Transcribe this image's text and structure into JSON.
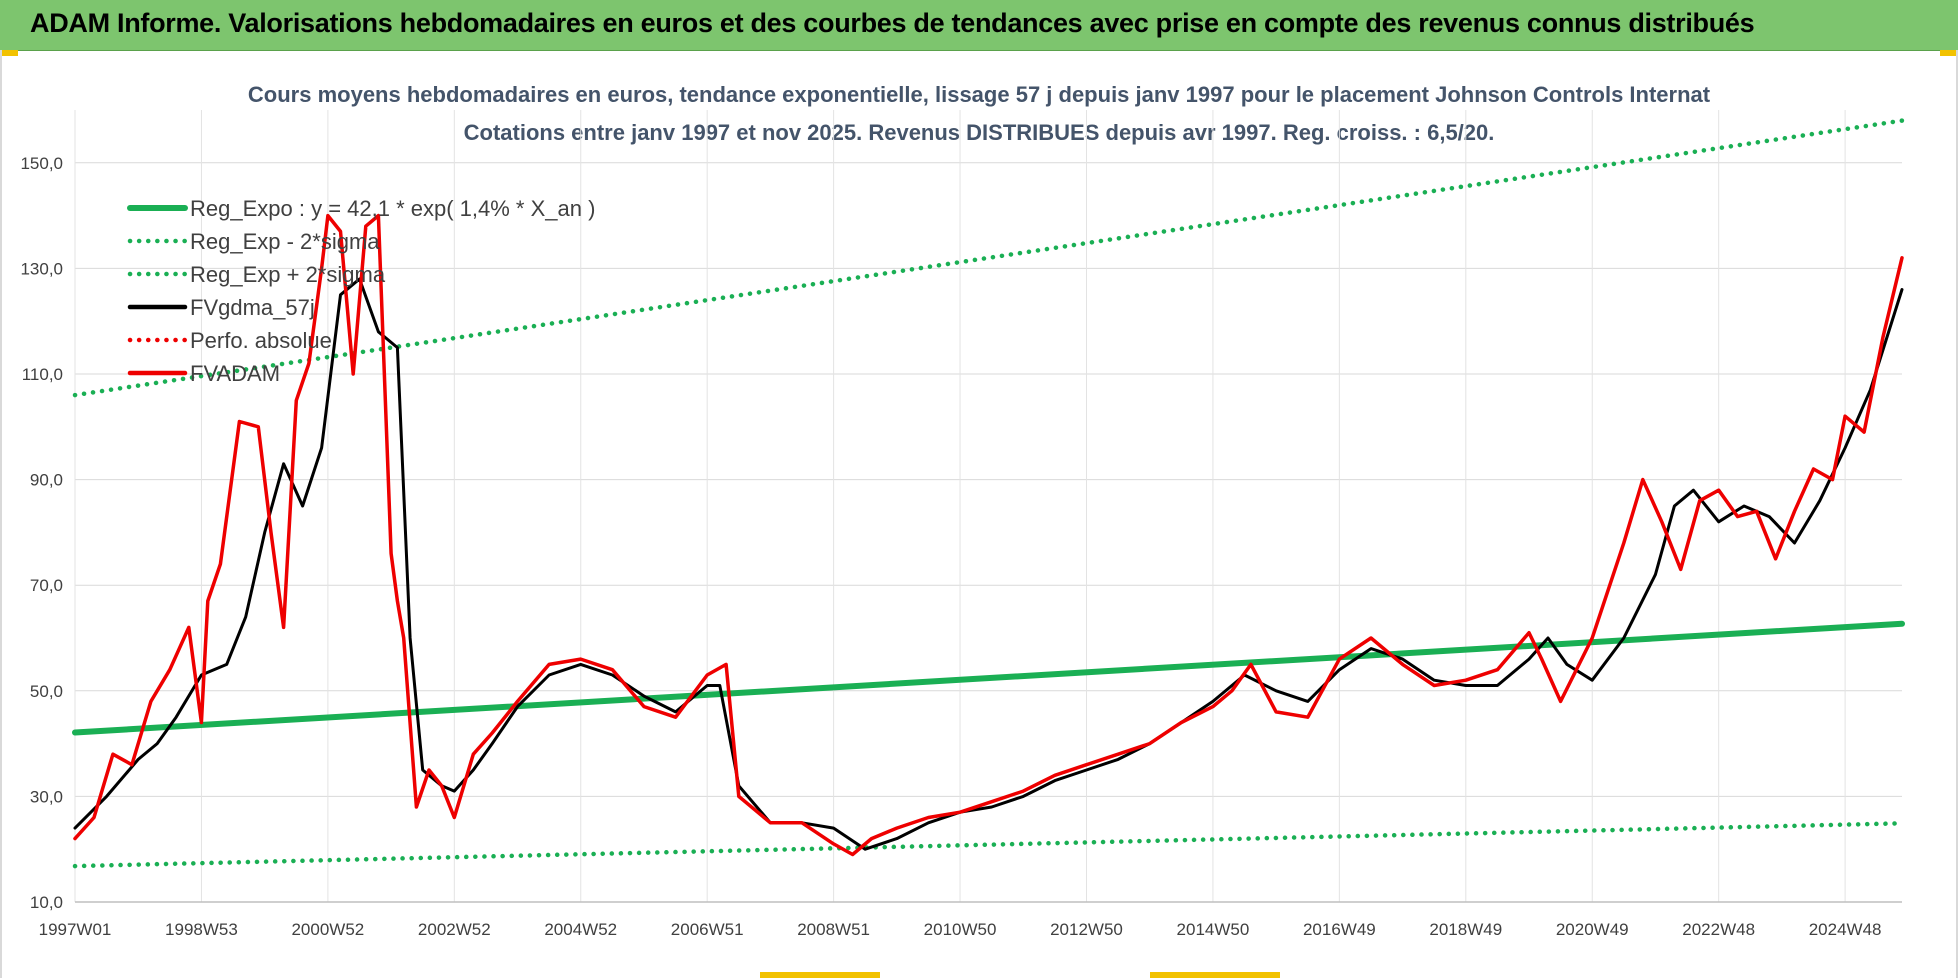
{
  "banner": {
    "title": "ADAM Informe. Valorisations hebdomadaires en euros et des courbes de tendances avec prise en compte des revenus connus distribués"
  },
  "colors": {
    "banner": "#7dc56e",
    "reg": "#1aaf54",
    "fv": "#ee0000",
    "gdma": "#000000",
    "accent": "#f2c200"
  },
  "chart_data": {
    "type": "line",
    "title": "Cours moyens hebdomadaires en euros, tendance exponentielle, lissage 57 j depuis janv 1997 pour le placement Johnson Controls Internat",
    "subtitle": "Cotations entre janv 1997 et nov 2025. Revenus DISTRIBUES depuis avr 1997. Reg. croiss. : 6,5/20.",
    "xlabel": "",
    "ylabel": "",
    "ylim": [
      10,
      160
    ],
    "xlim": [
      1997.0,
      2025.9
    ],
    "grid": true,
    "legend_position": "top-left",
    "y_ticks": [
      "10,0",
      "30,0",
      "50,0",
      "70,0",
      "90,0",
      "110,0",
      "130,0",
      "150,0"
    ],
    "x_ticks": [
      {
        "label": "1997W01",
        "x": 1997.0
      },
      {
        "label": "1998W53",
        "x": 1999.0
      },
      {
        "label": "2000W52",
        "x": 2001.0
      },
      {
        "label": "2002W52",
        "x": 2003.0
      },
      {
        "label": "2004W52",
        "x": 2005.0
      },
      {
        "label": "2006W51",
        "x": 2007.0
      },
      {
        "label": "2008W51",
        "x": 2009.0
      },
      {
        "label": "2010W50",
        "x": 2011.0
      },
      {
        "label": "2012W50",
        "x": 2013.0
      },
      {
        "label": "2014W50",
        "x": 2015.0
      },
      {
        "label": "2016W49",
        "x": 2017.0
      },
      {
        "label": "2018W49",
        "x": 2019.0
      },
      {
        "label": "2020W49",
        "x": 2021.0
      },
      {
        "label": "2022W48",
        "x": 2023.0
      },
      {
        "label": "2024W48",
        "x": 2025.0
      }
    ],
    "series": [
      {
        "name": "Reg_Expo : y = 42,1 * exp( 1,4% *  X_an )",
        "style": "solid",
        "color": "#1aaf54",
        "x": [
          1997.0,
          2025.9
        ],
        "y": [
          42.1,
          62.7
        ]
      },
      {
        "name": "Reg_Exp - 2*sigma",
        "style": "dotted",
        "color": "#1aaf54",
        "x": [
          1997.0,
          2025.9
        ],
        "y": [
          16.8,
          24.9
        ]
      },
      {
        "name": "Reg_Exp + 2*sigma",
        "style": "dotted",
        "color": "#1aaf54",
        "x": [
          1997.0,
          2025.9
        ],
        "y": [
          106.0,
          158.0
        ]
      },
      {
        "name": "FVgdma_57j",
        "style": "solid",
        "color": "#000000",
        "x": [
          1997.0,
          1997.5,
          1998.0,
          1998.3,
          1998.6,
          1999.0,
          1999.4,
          1999.7,
          2000.0,
          2000.3,
          2000.6,
          2000.9,
          2001.2,
          2001.5,
          2001.8,
          2002.1,
          2002.3,
          2002.5,
          2002.8,
          2003.0,
          2003.3,
          2003.6,
          2004.0,
          2004.5,
          2005.0,
          2005.5,
          2006.0,
          2006.5,
          2007.0,
          2007.2,
          2007.5,
          2008.0,
          2008.5,
          2009.0,
          2009.5,
          2010.0,
          2010.5,
          2011.0,
          2011.5,
          2012.0,
          2012.5,
          2013.0,
          2013.5,
          2014.0,
          2014.5,
          2015.0,
          2015.5,
          2016.0,
          2016.5,
          2017.0,
          2017.5,
          2018.0,
          2018.5,
          2019.0,
          2019.5,
          2020.0,
          2020.3,
          2020.6,
          2021.0,
          2021.5,
          2022.0,
          2022.3,
          2022.6,
          2023.0,
          2023.4,
          2023.8,
          2024.2,
          2024.6,
          2025.0,
          2025.4,
          2025.9
        ],
        "y": [
          24,
          30,
          37,
          40,
          45,
          53,
          55,
          64,
          80,
          93,
          85,
          96,
          125,
          128,
          118,
          115,
          60,
          35,
          32,
          31,
          35,
          40,
          47,
          53,
          55,
          53,
          49,
          46,
          51,
          51,
          32,
          25,
          25,
          24,
          20,
          22,
          25,
          27,
          28,
          30,
          33,
          35,
          37,
          40,
          44,
          48,
          53,
          50,
          48,
          54,
          58,
          56,
          52,
          51,
          51,
          56,
          60,
          55,
          52,
          60,
          72,
          85,
          88,
          82,
          85,
          83,
          78,
          86,
          96,
          107,
          126
        ]
      },
      {
        "name": "Perfo. absolue",
        "style": "dotted",
        "color": "#ee0000",
        "x": [],
        "y": []
      },
      {
        "name": "FVADAM",
        "style": "solid",
        "color": "#ee0000",
        "x": [
          1997.0,
          1997.3,
          1997.6,
          1997.9,
          1998.2,
          1998.5,
          1998.8,
          1999.0,
          1999.1,
          1999.3,
          1999.6,
          1999.9,
          2000.1,
          2000.3,
          2000.5,
          2000.7,
          2000.9,
          2001.0,
          2001.2,
          2001.4,
          2001.6,
          2001.8,
          2002.0,
          2002.1,
          2002.2,
          2002.4,
          2002.6,
          2002.8,
          2003.0,
          2003.3,
          2003.6,
          2004.0,
          2004.5,
          2005.0,
          2005.5,
          2006.0,
          2006.5,
          2007.0,
          2007.3,
          2007.5,
          2008.0,
          2008.5,
          2009.0,
          2009.3,
          2009.6,
          2010.0,
          2010.5,
          2011.0,
          2011.5,
          2012.0,
          2012.5,
          2013.0,
          2013.5,
          2014.0,
          2014.5,
          2015.0,
          2015.3,
          2015.6,
          2016.0,
          2016.5,
          2017.0,
          2017.5,
          2018.0,
          2018.5,
          2019.0,
          2019.5,
          2020.0,
          2020.2,
          2020.5,
          2021.0,
          2021.5,
          2021.8,
          2022.1,
          2022.4,
          2022.7,
          2023.0,
          2023.3,
          2023.6,
          2023.9,
          2024.2,
          2024.5,
          2024.8,
          2025.0,
          2025.3,
          2025.6,
          2025.9
        ],
        "y": [
          22,
          26,
          38,
          36,
          48,
          54,
          62,
          44,
          67,
          74,
          101,
          100,
          80,
          62,
          105,
          112,
          130,
          140,
          137,
          110,
          138,
          140,
          76,
          67,
          60,
          28,
          35,
          32,
          26,
          38,
          42,
          48,
          55,
          56,
          54,
          47,
          45,
          53,
          55,
          30,
          25,
          25,
          21,
          19,
          22,
          24,
          26,
          27,
          29,
          31,
          34,
          36,
          38,
          40,
          44,
          47,
          50,
          55,
          46,
          45,
          56,
          60,
          55,
          51,
          52,
          54,
          61,
          56,
          48,
          60,
          78,
          90,
          82,
          73,
          86,
          88,
          83,
          84,
          75,
          84,
          92,
          90,
          102,
          99,
          117,
          132
        ]
      }
    ]
  }
}
